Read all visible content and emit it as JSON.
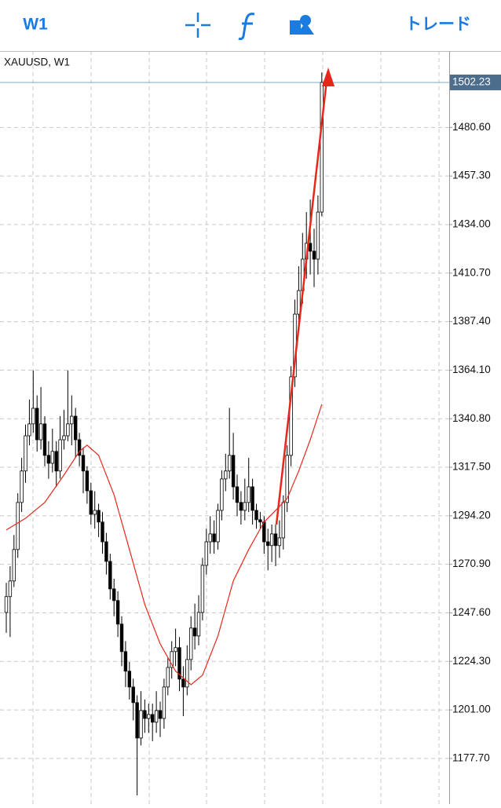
{
  "toolbar": {
    "timeframe": "W1",
    "trade": "トレード"
  },
  "chart_data": {
    "type": "candlestick",
    "title": "XAUUSD, W1",
    "ylim": [
      1155.8,
      1517.3
    ],
    "yticks": [
      {
        "value": 1177.7,
        "label": "1177.70"
      },
      {
        "value": 1201,
        "label": "1201.00"
      },
      {
        "value": 1224.3,
        "label": "1224.30"
      },
      {
        "value": 1247.6,
        "label": "1247.60"
      },
      {
        "value": 1270.9,
        "label": "1270.90"
      },
      {
        "value": 1294.2,
        "label": "1294.20"
      },
      {
        "value": 1317.5,
        "label": "1317.50"
      },
      {
        "value": 1340.8,
        "label": "1340.80"
      },
      {
        "value": 1364.1,
        "label": "1364.10"
      },
      {
        "value": 1387.4,
        "label": "1387.40"
      },
      {
        "value": 1410.7,
        "label": "1410.70"
      },
      {
        "value": 1434,
        "label": "1434.00"
      },
      {
        "value": 1457.3,
        "label": "1457.30"
      },
      {
        "value": 1480.6,
        "label": "1480.60"
      }
    ],
    "grid": true,
    "last_price": 1502.23,
    "open": [
      1247.8,
      1255.4,
      1262.9,
      1278.0,
      1300.6,
      1315.7,
      1332.6,
      1338.3,
      1345.8,
      1330.7,
      1338.3,
      1323.2,
      1319.4,
      1325.1,
      1315.7,
      1330.7,
      1332.6,
      1338.3,
      1342.0,
      1330.7,
      1323.2,
      1315.7,
      1306.2,
      1294.9,
      1296.8,
      1291.2,
      1281.7,
      1272.3,
      1259.1,
      1253.5,
      1242.2,
      1229.0,
      1219.6,
      1212.0,
      1204.5,
      1187.5,
      1200.7,
      1196.9,
      1198.8,
      1195.1,
      1200.7,
      1196.9,
      1212.0,
      1221.4,
      1229.0,
      1230.9,
      1215.8,
      1212.0,
      1225.2,
      1240.3,
      1236.5,
      1247.8,
      1270.4,
      1281.7,
      1285.5,
      1281.7,
      1296.8,
      1311.9,
      1315.7,
      1323.2,
      1308.1,
      1300.6,
      1296.8,
      1300.6,
      1308.1,
      1296.8,
      1292.3,
      1291.2,
      1281.7,
      1279.9,
      1285.5,
      1279.9,
      1283.6,
      1300.6,
      1323.2,
      1360.9,
      1391.0,
      1402.3,
      1417.4,
      1425.0,
      1421.2,
      1417.4,
      1440.0
    ],
    "high": [
      1262,
      1270,
      1285,
      1305,
      1322,
      1338,
      1350,
      1364,
      1352,
      1356,
      1342,
      1330,
      1336,
      1330,
      1342,
      1345,
      1364,
      1352,
      1346,
      1334,
      1327,
      1318,
      1310,
      1306,
      1300,
      1296,
      1286,
      1276,
      1264,
      1258,
      1246,
      1234,
      1224,
      1216,
      1208,
      1210,
      1206,
      1204,
      1204,
      1210,
      1205,
      1216,
      1226,
      1234,
      1240,
      1236,
      1222,
      1232,
      1246,
      1252,
      1256,
      1274,
      1288,
      1294,
      1292,
      1300,
      1316,
      1324,
      1346,
      1334,
      1314,
      1306,
      1312,
      1322,
      1312,
      1300,
      1296,
      1294,
      1288,
      1290,
      1290,
      1292,
      1304,
      1328,
      1366,
      1398,
      1414,
      1430,
      1440,
      1446,
      1432,
      1448,
      1507
    ],
    "low": [
      1238,
      1236,
      1260,
      1274,
      1296,
      1310,
      1328,
      1334,
      1325,
      1326,
      1318,
      1312,
      1315,
      1308,
      1312,
      1326,
      1330,
      1328,
      1322,
      1318,
      1305,
      1300,
      1290,
      1288,
      1284,
      1276,
      1266,
      1254,
      1246,
      1236,
      1222,
      1212,
      1206,
      1196,
      1160,
      1184,
      1190,
      1190,
      1186,
      1190,
      1188,
      1192,
      1208,
      1216,
      1222,
      1210,
      1198,
      1208,
      1220,
      1230,
      1232,
      1244,
      1266,
      1276,
      1276,
      1278,
      1292,
      1306,
      1312,
      1302,
      1294,
      1290,
      1292,
      1296,
      1290,
      1288,
      1288,
      1276,
      1268,
      1272,
      1270,
      1274,
      1278,
      1296,
      1318,
      1356,
      1386,
      1396,
      1408,
      1410,
      1404,
      1410,
      1438
    ],
    "close": [
      1255.4,
      1262.9,
      1278.0,
      1300.6,
      1315.7,
      1332.6,
      1338.3,
      1345.8,
      1330.7,
      1338.3,
      1323.2,
      1319.4,
      1325.1,
      1315.7,
      1330.7,
      1332.6,
      1338.3,
      1342.0,
      1330.7,
      1323.2,
      1315.7,
      1306.2,
      1294.9,
      1296.8,
      1291.2,
      1281.7,
      1272.3,
      1259.1,
      1253.5,
      1242.2,
      1229.0,
      1219.6,
      1212.0,
      1204.5,
      1187.5,
      1200.7,
      1196.9,
      1198.8,
      1195.1,
      1200.7,
      1196.9,
      1212.0,
      1221.4,
      1229.0,
      1230.9,
      1215.8,
      1212.0,
      1225.2,
      1240.3,
      1236.5,
      1247.8,
      1270.4,
      1281.7,
      1285.5,
      1281.7,
      1296.8,
      1311.9,
      1315.7,
      1323.2,
      1308.1,
      1300.6,
      1296.8,
      1300.6,
      1308.1,
      1296.8,
      1292.3,
      1291.2,
      1281.7,
      1279.9,
      1285.5,
      1279.9,
      1283.6,
      1300.6,
      1323.2,
      1360.9,
      1391.0,
      1402.3,
      1417.4,
      1425.0,
      1421.2,
      1417.4,
      1440.0,
      1502.23
    ],
    "ma": {
      "color": "#e8271c",
      "x": [
        0,
        5,
        10,
        15,
        19,
        21,
        24,
        28,
        32,
        36,
        40,
        44,
        48,
        51,
        55,
        59,
        63,
        67,
        70,
        73,
        76,
        79,
        82
      ],
      "values": [
        1287.4,
        1293.0,
        1300.6,
        1313.8,
        1325.1,
        1328.1,
        1323.2,
        1304.3,
        1278.0,
        1251.6,
        1232.7,
        1219.6,
        1213.1,
        1217.7,
        1236.5,
        1262.9,
        1278.0,
        1291.2,
        1296.8,
        1302.5,
        1315.7,
        1330.7,
        1347.7
      ]
    }
  }
}
